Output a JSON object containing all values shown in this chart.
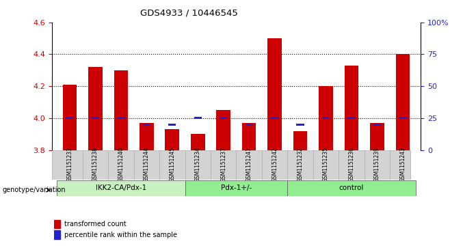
{
  "title": "GDS4933 / 10446545",
  "samples": [
    "GSM1151233",
    "GSM1151238",
    "GSM1151240",
    "GSM1151244",
    "GSM1151245",
    "GSM1151234",
    "GSM1151237",
    "GSM1151241",
    "GSM1151242",
    "GSM1151232",
    "GSM1151235",
    "GSM1151236",
    "GSM1151239",
    "GSM1151243"
  ],
  "red_values": [
    4.21,
    4.32,
    4.3,
    3.97,
    3.93,
    3.9,
    4.05,
    3.97,
    4.5,
    3.92,
    4.2,
    4.33,
    3.97,
    4.4
  ],
  "blue_values": [
    25,
    25,
    25,
    20,
    20,
    25,
    25,
    20,
    25,
    20,
    25,
    25,
    20,
    25
  ],
  "ylim_left": [
    3.8,
    4.6
  ],
  "ylim_right": [
    0,
    100
  ],
  "yticks_left": [
    3.8,
    4.0,
    4.2,
    4.4,
    4.6
  ],
  "yticks_right": [
    0,
    25,
    50,
    75,
    100
  ],
  "bar_width": 0.55,
  "red_color": "#cc0000",
  "blue_color": "#2222cc",
  "baseline": 3.8,
  "legend_red": "transformed count",
  "legend_blue": "percentile rank within the sample",
  "group_label": "genotype/variation",
  "background_color": "#ffffff",
  "plot_bg": "#ffffff",
  "tick_color_left": "#cc0000",
  "tick_color_right": "#2222cc",
  "group_data": [
    {
      "label": "IKK2-CA/Pdx-1",
      "start": 0,
      "end": 4,
      "color": "#c8f0c0"
    },
    {
      "label": "Pdx-1+/-",
      "start": 5,
      "end": 8,
      "color": "#90ee90"
    },
    {
      "label": "control",
      "start": 9,
      "end": 13,
      "color": "#90ee90"
    }
  ]
}
